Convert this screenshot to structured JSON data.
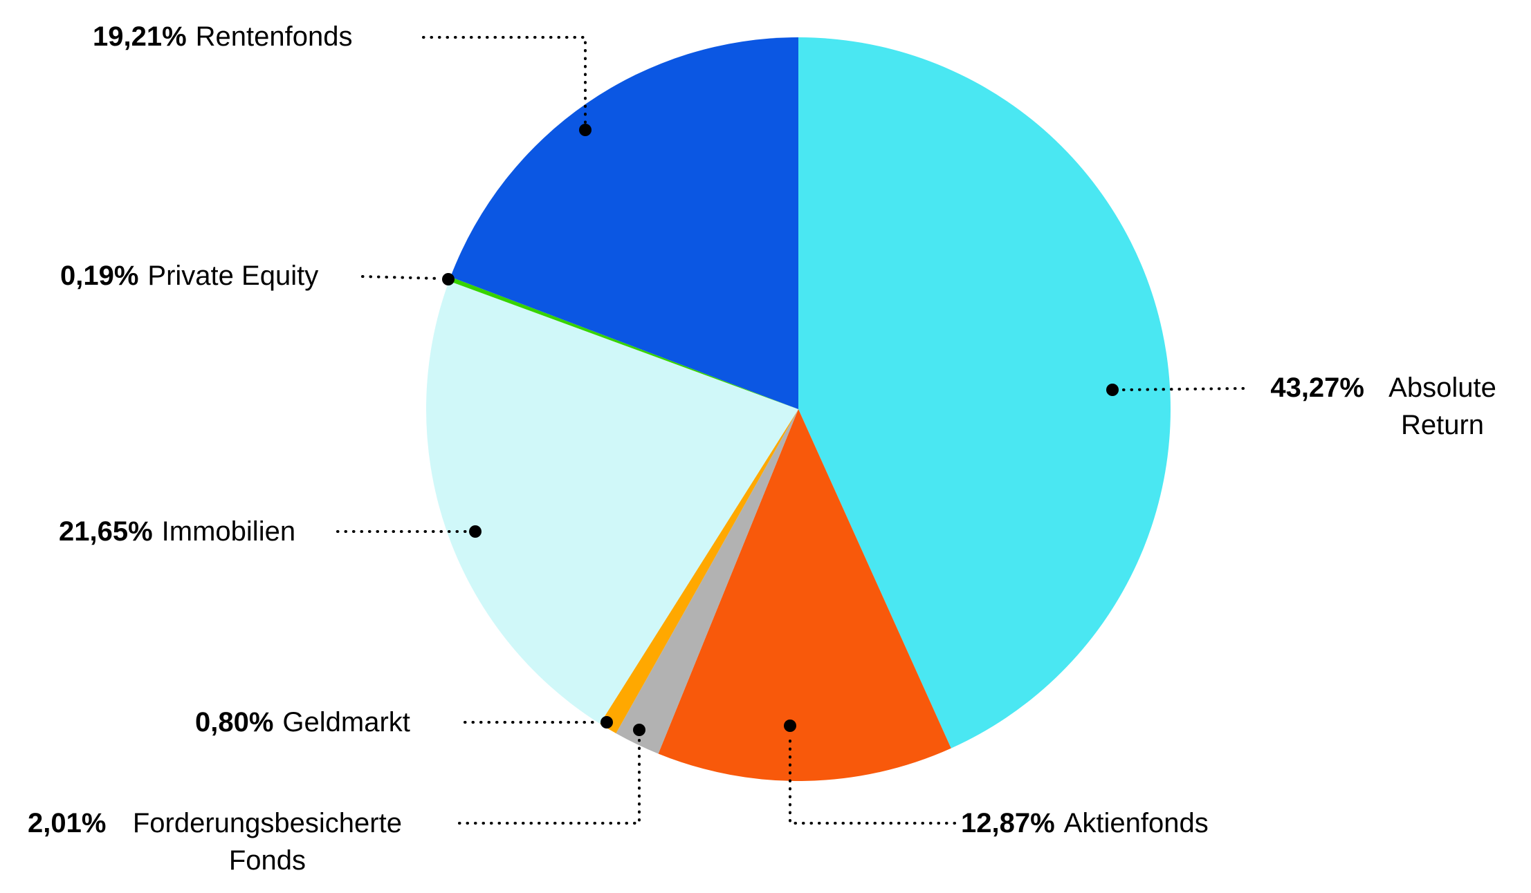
{
  "chart_data": {
    "type": "pie",
    "title": "",
    "start_angle_deg": 0,
    "direction": "clockwise",
    "total_pct": 100,
    "decimal_separator": ",",
    "value_suffix": "%",
    "legend_position": "none",
    "slices": [
      {
        "label": "Absolute Return",
        "value_pct": 43.27,
        "value_label": "43,27%",
        "color": "#4AE7F2"
      },
      {
        "label": "Aktienfonds",
        "value_pct": 12.87,
        "value_label": "12,87%",
        "color": "#F8590B"
      },
      {
        "label": "Forderungsbesicherte Fonds",
        "value_pct": 2.01,
        "value_label": "2,01%",
        "color": "#B2B2B2"
      },
      {
        "label": "Geldmarkt",
        "value_pct": 0.8,
        "value_label": "0,80%",
        "color": "#FFA800"
      },
      {
        "label": "Immobilien",
        "value_pct": 21.65,
        "value_label": "21,65%",
        "color": "#D0F8F9"
      },
      {
        "label": "Private Equity",
        "value_pct": 0.19,
        "value_label": "0,19%",
        "color": "#37D300"
      },
      {
        "label": "Rentenfonds",
        "value_pct": 19.21,
        "value_label": "19,21%",
        "color": "#0B57E3"
      }
    ],
    "colors": {
      "background": "#ffffff",
      "text": "#000000",
      "leader_line": "#000000"
    }
  }
}
